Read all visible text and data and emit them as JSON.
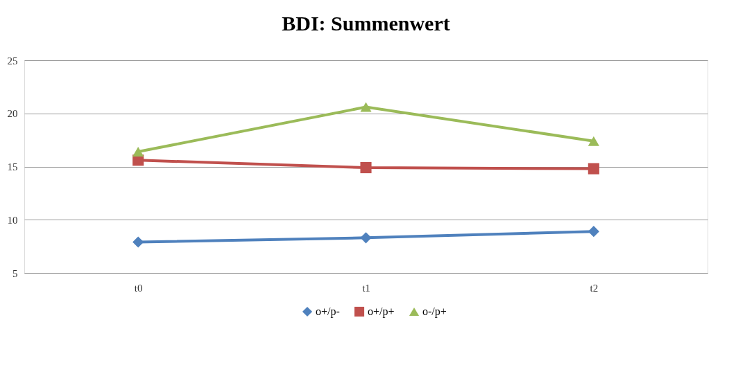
{
  "chart_data": {
    "type": "line",
    "title": "BDI: Summenwert",
    "categories": [
      "t0",
      "t1",
      "t2"
    ],
    "series": [
      {
        "name": "o+/p-",
        "color": "#4f81bd",
        "marker": "diamond",
        "values": [
          7.9,
          8.3,
          8.9
        ]
      },
      {
        "name": "o+/p+",
        "color": "#c0504d",
        "marker": "square",
        "values": [
          15.6,
          14.9,
          14.8
        ]
      },
      {
        "name": "o-/p+",
        "color": "#9bbb59",
        "marker": "triangle",
        "values": [
          16.4,
          20.6,
          17.4
        ]
      }
    ],
    "ylim": [
      5,
      25
    ],
    "yticks": [
      5,
      10,
      15,
      20,
      25
    ],
    "grid": "y",
    "legend": "bottom",
    "line_style": "solid"
  }
}
